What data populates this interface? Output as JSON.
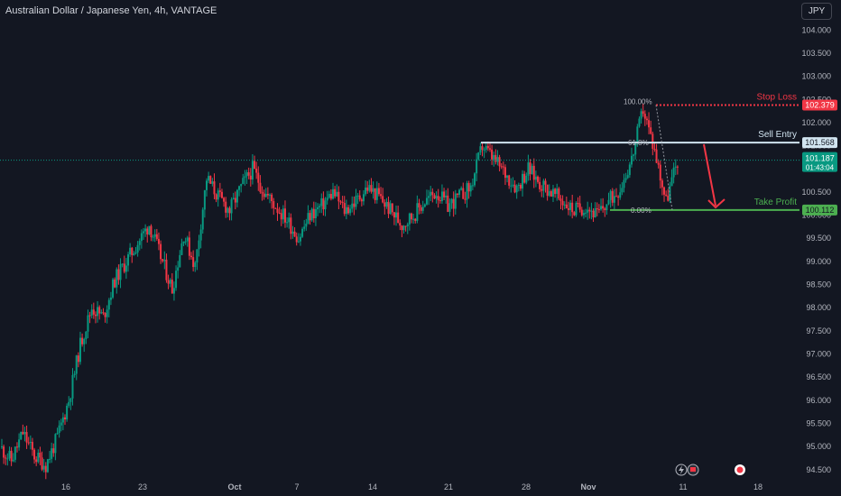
{
  "header": {
    "title": "Australian Dollar / Japanese Yen, 4h, VANTAGE",
    "currency_button": "JPY"
  },
  "chart_data": {
    "type": "candlestick",
    "symbol": "AUDJPY",
    "timeframe": "4h",
    "x_tick_labels": [
      "16",
      "23",
      "Oct",
      "7",
      "14",
      "21",
      "28",
      "Nov",
      "11",
      "18"
    ],
    "y_tick_labels": [
      "94.500",
      "95.000",
      "95.500",
      "96.000",
      "96.500",
      "97.000",
      "97.500",
      "98.000",
      "98.500",
      "99.000",
      "99.500",
      "100.000",
      "100.500",
      "101.000",
      "101.500",
      "102.000",
      "102.500",
      "103.000",
      "103.500",
      "104.000"
    ],
    "ylim": [
      94.4,
      104.2
    ],
    "grid": false,
    "price_path": [
      {
        "x": "Sep 12",
        "y": 95.0
      },
      {
        "x": "Sep 13",
        "y": 94.7
      },
      {
        "x": "Sep 14",
        "y": 95.3
      },
      {
        "x": "Sep 15",
        "y": 94.8
      },
      {
        "x": "Sep 16",
        "y": 94.6
      },
      {
        "x": "Sep 17",
        "y": 95.2
      },
      {
        "x": "Sep 18",
        "y": 96.0
      },
      {
        "x": "Sep 19",
        "y": 97.2
      },
      {
        "x": "Sep 20",
        "y": 98.0
      },
      {
        "x": "Sep 21",
        "y": 97.8
      },
      {
        "x": "Sep 22",
        "y": 98.6
      },
      {
        "x": "Sep 23",
        "y": 99.0
      },
      {
        "x": "Sep 24",
        "y": 99.4
      },
      {
        "x": "Sep 25",
        "y": 99.8
      },
      {
        "x": "Sep 26",
        "y": 99.1
      },
      {
        "x": "Sep 27",
        "y": 98.4
      },
      {
        "x": "Sep 28",
        "y": 99.6
      },
      {
        "x": "Sep 29",
        "y": 98.9
      },
      {
        "x": "Sep 30",
        "y": 100.8
      },
      {
        "x": "Oct 1",
        "y": 100.4
      },
      {
        "x": "Oct 2",
        "y": 100.1
      },
      {
        "x": "Oct 3",
        "y": 100.6
      },
      {
        "x": "Oct 4",
        "y": 101.0
      },
      {
        "x": "Oct 5",
        "y": 100.5
      },
      {
        "x": "Oct 6",
        "y": 100.2
      },
      {
        "x": "Oct 7",
        "y": 99.9
      },
      {
        "x": "Oct 8",
        "y": 99.5
      },
      {
        "x": "Oct 9",
        "y": 100.0
      },
      {
        "x": "Oct 10",
        "y": 100.2
      },
      {
        "x": "Oct 11",
        "y": 100.5
      },
      {
        "x": "Oct 12",
        "y": 100.1
      },
      {
        "x": "Oct 13",
        "y": 100.3
      },
      {
        "x": "Oct 14",
        "y": 100.6
      },
      {
        "x": "Oct 15",
        "y": 100.4
      },
      {
        "x": "Oct 16",
        "y": 100.1
      },
      {
        "x": "Oct 17",
        "y": 99.8
      },
      {
        "x": "Oct 18",
        "y": 100.0
      },
      {
        "x": "Oct 19",
        "y": 100.3
      },
      {
        "x": "Oct 20",
        "y": 100.5
      },
      {
        "x": "Oct 21",
        "y": 100.2
      },
      {
        "x": "Oct 22",
        "y": 100.4
      },
      {
        "x": "Oct 23",
        "y": 100.6
      },
      {
        "x": "Oct 24",
        "y": 101.5
      },
      {
        "x": "Oct 25",
        "y": 101.2
      },
      {
        "x": "Oct 26",
        "y": 100.9
      },
      {
        "x": "Oct 27",
        "y": 100.6
      },
      {
        "x": "Oct 28",
        "y": 101.0
      },
      {
        "x": "Oct 29",
        "y": 100.7
      },
      {
        "x": "Oct 30",
        "y": 100.5
      },
      {
        "x": "Oct 31",
        "y": 100.3
      },
      {
        "x": "Nov 1",
        "y": 100.1
      },
      {
        "x": "Nov 2",
        "y": 100.2
      },
      {
        "x": "Nov 3",
        "y": 100.0
      },
      {
        "x": "Nov 4",
        "y": 100.3
      },
      {
        "x": "Nov 5",
        "y": 100.6
      },
      {
        "x": "Nov 6",
        "y": 101.2
      },
      {
        "x": "Nov 7",
        "y": 102.3
      },
      {
        "x": "Nov 8",
        "y": 101.4
      },
      {
        "x": "Nov 9",
        "y": 100.3
      },
      {
        "x": "Nov 10",
        "y": 101.19
      }
    ],
    "current_price": {
      "value": "101.187",
      "countdown": "01:43:04"
    },
    "fib_labels": {
      "top": "100.00%",
      "mid": "61.8%",
      "bottom": "0.00%"
    },
    "levels": [
      {
        "name": "Stop Loss",
        "price": 102.379,
        "price_label": "102.379",
        "color": "#f23645"
      },
      {
        "name": "Sell Entry",
        "price": 101.568,
        "price_label": "101.568",
        "color": "#d1e4f0"
      },
      {
        "name": "Take Profit",
        "price": 100.112,
        "price_label": "100.112",
        "color": "#4caf50"
      }
    ],
    "colors": {
      "up": "#089981",
      "down": "#f23645",
      "background": "#131722",
      "axis_text": "#b2b5be",
      "last_price": "#089981"
    },
    "icons": [
      "lightning-icon",
      "flag-icon",
      "record-icon"
    ]
  }
}
